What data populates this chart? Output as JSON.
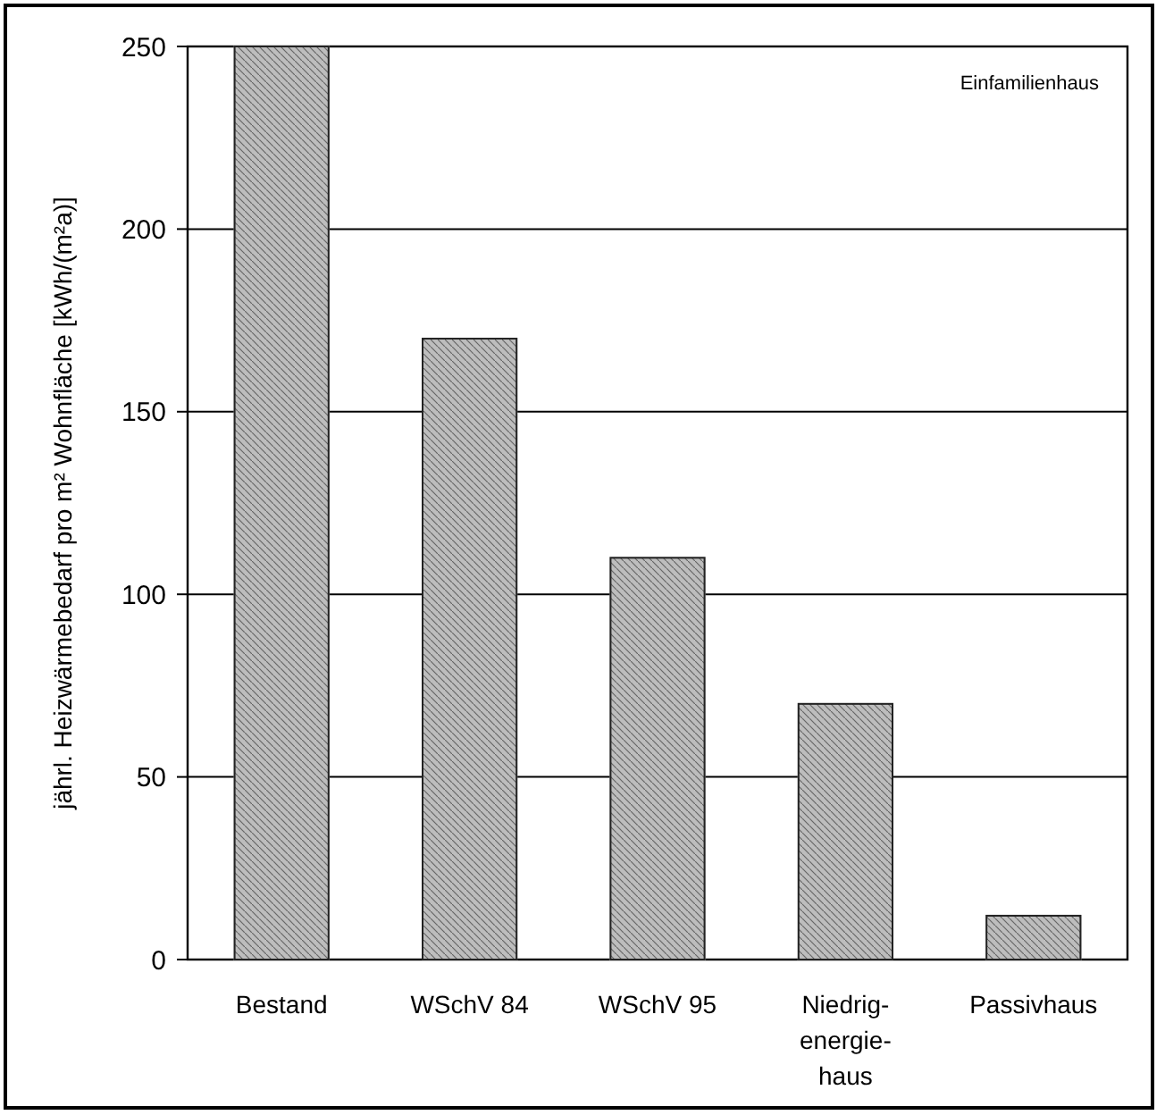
{
  "chart_data": {
    "type": "bar",
    "ylabel": "jährl. Heizwärmebedarf pro m² Wohnfläche [kWh/(m²a)]",
    "categories": [
      "Bestand",
      "WSchV 84",
      "WSchV 95",
      "Niedrig-energie-haus",
      "Passivhaus"
    ],
    "values": [
      250,
      170,
      110,
      70,
      12
    ],
    "color": "#bdbdbd",
    "ylim": [
      0,
      250
    ],
    "yticks": [
      0,
      50,
      100,
      150,
      200,
      250
    ],
    "grid": "y",
    "annotations": [
      "Einfamilienhaus"
    ]
  }
}
